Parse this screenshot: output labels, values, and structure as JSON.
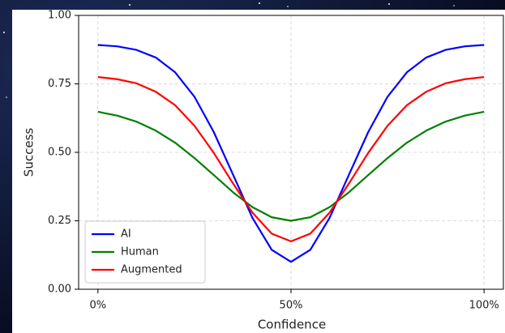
{
  "chart_data": {
    "type": "line",
    "xlabel": "Confidence",
    "ylabel": "Success",
    "x": [
      0,
      5,
      10,
      15,
      20,
      25,
      30,
      35,
      40,
      45,
      50,
      55,
      60,
      65,
      70,
      75,
      80,
      85,
      90,
      95,
      100
    ],
    "series": [
      {
        "name": "AI",
        "color": "#0000ff",
        "values": [
          0.892,
          0.887,
          0.874,
          0.846,
          0.792,
          0.703,
          0.574,
          0.418,
          0.261,
          0.144,
          0.1,
          0.144,
          0.261,
          0.418,
          0.574,
          0.703,
          0.792,
          0.846,
          0.874,
          0.887,
          0.892
        ]
      },
      {
        "name": "Human",
        "color": "#008000",
        "values": [
          0.648,
          0.634,
          0.612,
          0.579,
          0.535,
          0.479,
          0.417,
          0.354,
          0.3,
          0.263,
          0.25,
          0.263,
          0.3,
          0.354,
          0.417,
          0.479,
          0.535,
          0.579,
          0.612,
          0.634,
          0.648
        ]
      },
      {
        "name": "Augmented",
        "color": "#ff0000",
        "values": [
          0.775,
          0.767,
          0.752,
          0.721,
          0.672,
          0.597,
          0.498,
          0.386,
          0.28,
          0.203,
          0.175,
          0.203,
          0.28,
          0.386,
          0.498,
          0.597,
          0.672,
          0.721,
          0.752,
          0.767,
          0.775
        ]
      }
    ],
    "xlim": [
      -5,
      105
    ],
    "xticks": [
      {
        "value": 0,
        "label": "0%"
      },
      {
        "value": 50,
        "label": "50%"
      },
      {
        "value": 100,
        "label": "100%"
      }
    ],
    "ylim": [
      0,
      1
    ],
    "yticks": [
      {
        "value": 0,
        "label": "0.00"
      },
      {
        "value": 0.25,
        "label": "0.25"
      },
      {
        "value": 0.5,
        "label": "0.50"
      },
      {
        "value": 0.75,
        "label": "0.75"
      },
      {
        "value": 1,
        "label": "1.00"
      }
    ],
    "grid": true,
    "legend": "lower left"
  }
}
